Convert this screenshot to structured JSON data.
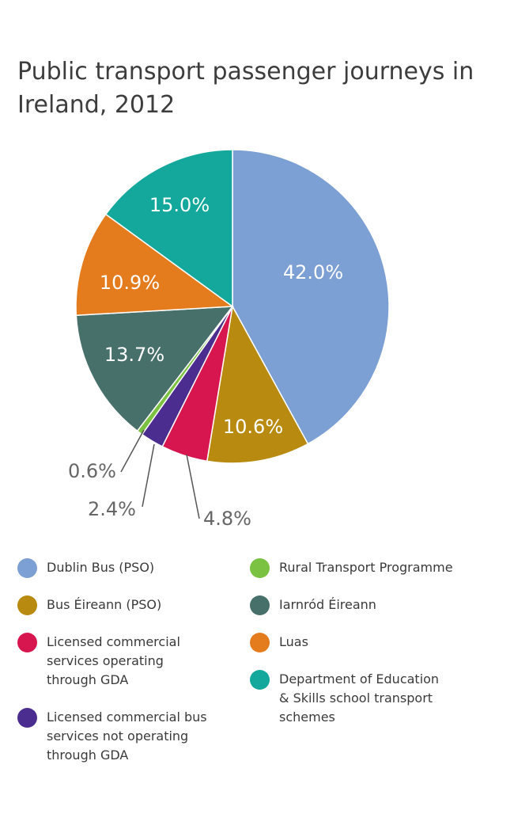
{
  "title_line1": "Public transport passenger journeys in",
  "title_line2": "Ireland, 2012",
  "chart_data": {
    "type": "pie",
    "title": "Public transport passenger journeys in Ireland, 2012",
    "slices": [
      {
        "label": "Dublin Bus (PSO)",
        "value": 42.0,
        "display": "42.0%",
        "color": "#7c9fd4"
      },
      {
        "label": "Bus Éireann (PSO)",
        "value": 10.6,
        "display": "10.6%",
        "color": "#b88a10"
      },
      {
        "label": "Licensed commercial services operating through GDA",
        "value": 4.8,
        "display": "4.8%",
        "color": "#d7164f"
      },
      {
        "label": "Licensed commercial bus services not operating through GDA",
        "value": 2.4,
        "display": "2.4%",
        "color": "#4b2d8f"
      },
      {
        "label": "Rural Transport Programme",
        "value": 0.6,
        "display": "0.6%",
        "color": "#7cc242"
      },
      {
        "label": "Iarnród Éireann",
        "value": 13.7,
        "display": "13.7%",
        "color": "#48706b"
      },
      {
        "label": "Luas",
        "value": 10.9,
        "display": "10.9%",
        "color": "#e47b1d"
      },
      {
        "label": "Department of Education & Skills school transport schemes",
        "value": 15.0,
        "display": "15.0%",
        "color": "#13a89b"
      }
    ]
  },
  "legend": [
    {
      "lines": [
        "Dublin Bus (PSO)"
      ],
      "color": "#7c9fd4"
    },
    {
      "lines": [
        "Bus Éireann (PSO)"
      ],
      "color": "#b88a10"
    },
    {
      "lines": [
        "Licensed commercial",
        "services operating",
        "through GDA"
      ],
      "color": "#d7164f"
    },
    {
      "lines": [
        "Licensed commercial bus",
        "services not operating",
        "through GDA"
      ],
      "color": "#4b2d8f"
    },
    {
      "lines": [
        "Rural Transport Programme"
      ],
      "color": "#7cc242"
    },
    {
      "lines": [
        "Iarnród Éireann"
      ],
      "color": "#48706b"
    },
    {
      "lines": [
        "Luas"
      ],
      "color": "#e47b1d"
    },
    {
      "lines": [
        "Department of Education",
        "& Skills school transport",
        "schemes"
      ],
      "color": "#13a89b"
    }
  ]
}
